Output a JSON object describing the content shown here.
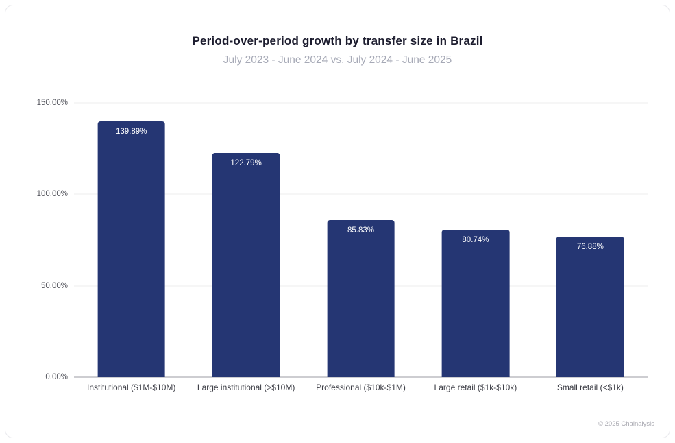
{
  "chart": {
    "title": "Period-over-period growth by transfer size in Brazil",
    "subtitle": "July 2023 - June 2024 vs. July 2024 - June 2025",
    "credit": "© 2025 Chainalysis"
  },
  "chart_data": {
    "type": "bar",
    "title": "Period-over-period growth by transfer size in Brazil",
    "subtitle": "July 2023 - June 2024 vs. July 2024 - June 2025",
    "categories": [
      "Institutional ($1M-$10M)",
      "Large institutional (>$10M)",
      "Professional ($10k-$1M)",
      "Large retail ($1k-$10k)",
      "Small retail (<$1k)"
    ],
    "values": [
      139.89,
      122.79,
      85.83,
      80.74,
      76.88
    ],
    "value_labels": [
      "139.89%",
      "122.79%",
      "85.83%",
      "80.74%",
      "76.88%"
    ],
    "ylim": [
      0,
      150
    ],
    "yticks": [
      0,
      50,
      100,
      150
    ],
    "ytick_labels": [
      "0.00%",
      "50.00%",
      "100.00%",
      "150.00%"
    ],
    "xlabel": "",
    "ylabel": "",
    "grid": true,
    "legend": false,
    "bar_color": "#253673"
  }
}
